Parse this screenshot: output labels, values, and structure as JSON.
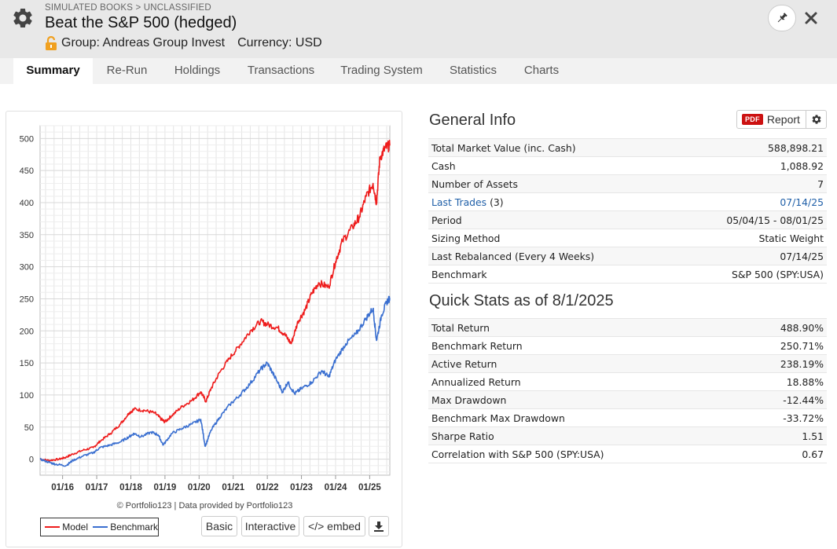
{
  "header": {
    "breadcrumb": "SIMULATED BOOKS > UNCLASSIFIED",
    "title": "Beat the S&P 500 (hedged)",
    "group": "Group: Andreas Group Invest",
    "currency": "Currency: USD"
  },
  "tabs": [
    "Summary",
    "Re-Run",
    "Holdings",
    "Transactions",
    "Trading System",
    "Statistics",
    "Charts"
  ],
  "general_info": {
    "title": "General Info",
    "report_badge": "PDF",
    "report_label": "Report",
    "rows": [
      {
        "label": "Total Market Value (inc. Cash)",
        "value": "588,898.21"
      },
      {
        "label": "Cash",
        "value": "1,088.92"
      },
      {
        "label": "Number of Assets",
        "value": "7"
      },
      {
        "label": "Last Trades",
        "label_suffix": "(3)",
        "value": "07/14/25"
      },
      {
        "label": "Period",
        "value": "05/04/15 - 08/01/25"
      },
      {
        "label": "Sizing Method",
        "value": "Static Weight"
      },
      {
        "label": "Last Rebalanced (Every 4 Weeks)",
        "value": "07/14/25"
      },
      {
        "label": "Benchmark",
        "value": "S&P 500 (SPY:USA)"
      }
    ]
  },
  "quick_stats": {
    "title": "Quick Stats as of 8/1/2025",
    "rows": [
      {
        "label": "Total Return",
        "value": "488.90%"
      },
      {
        "label": "Benchmark Return",
        "value": "250.71%"
      },
      {
        "label": "Active Return",
        "value": "238.19%"
      },
      {
        "label": "Annualized Return",
        "value": "18.88%"
      },
      {
        "label": "Max Drawdown",
        "value": "-12.44%"
      },
      {
        "label": "Benchmark Max Drawdown",
        "value": "-33.72%"
      },
      {
        "label": "Sharpe Ratio",
        "value": "1.51"
      },
      {
        "label": "Correlation with S&P 500 (SPY:USA)",
        "value": "0.67"
      }
    ]
  },
  "chart_panel": {
    "credit": "© Portfolio123 | Data provided by Portfolio123",
    "buttons": {
      "basic": "Basic",
      "interactive": "Interactive",
      "embed": "</> embed"
    }
  },
  "colors": {
    "model": "#ee1c1c",
    "benchmark": "#3a6fd0",
    "negative": "#dd1111",
    "link": "#1f5fa8"
  },
  "chart_data": {
    "type": "line",
    "ylim": [
      -25,
      520
    ],
    "yticks": [
      0,
      50,
      100,
      150,
      200,
      250,
      300,
      350,
      400,
      450,
      500
    ],
    "xlim": [
      2015.34,
      2025.59
    ],
    "xticks": [
      {
        "label": "01/16",
        "x": 2016.0
      },
      {
        "label": "01/17",
        "x": 2017.0
      },
      {
        "label": "01/18",
        "x": 2018.0
      },
      {
        "label": "01/19",
        "x": 2019.0
      },
      {
        "label": "01/20",
        "x": 2020.0
      },
      {
        "label": "01/21",
        "x": 2021.0
      },
      {
        "label": "01/22",
        "x": 2022.0
      },
      {
        "label": "01/23",
        "x": 2023.0
      },
      {
        "label": "01/24",
        "x": 2024.0
      },
      {
        "label": "01/25",
        "x": 2025.0
      }
    ],
    "series": [
      {
        "name": "Model",
        "points": [
          [
            2015.34,
            0
          ],
          [
            2015.6,
            -2
          ],
          [
            2015.9,
            0
          ],
          [
            2016.1,
            3
          ],
          [
            2016.3,
            8
          ],
          [
            2016.6,
            14
          ],
          [
            2016.9,
            18
          ],
          [
            2017.1,
            28
          ],
          [
            2017.4,
            40
          ],
          [
            2017.7,
            55
          ],
          [
            2017.95,
            72
          ],
          [
            2018.1,
            78
          ],
          [
            2018.4,
            76
          ],
          [
            2018.7,
            72
          ],
          [
            2018.9,
            62
          ],
          [
            2019.0,
            58
          ],
          [
            2019.2,
            68
          ],
          [
            2019.5,
            82
          ],
          [
            2019.8,
            92
          ],
          [
            2020.05,
            105
          ],
          [
            2020.2,
            90
          ],
          [
            2020.35,
            110
          ],
          [
            2020.6,
            135
          ],
          [
            2020.9,
            158
          ],
          [
            2021.2,
            178
          ],
          [
            2021.5,
            200
          ],
          [
            2021.8,
            215
          ],
          [
            2022.0,
            210
          ],
          [
            2022.3,
            205
          ],
          [
            2022.5,
            195
          ],
          [
            2022.7,
            180
          ],
          [
            2022.9,
            215
          ],
          [
            2023.1,
            232
          ],
          [
            2023.3,
            258
          ],
          [
            2023.5,
            275
          ],
          [
            2023.8,
            268
          ],
          [
            2024.0,
            308
          ],
          [
            2024.2,
            340
          ],
          [
            2024.5,
            362
          ],
          [
            2024.7,
            378
          ],
          [
            2024.9,
            410
          ],
          [
            2025.1,
            430
          ],
          [
            2025.2,
            400
          ],
          [
            2025.3,
            470
          ],
          [
            2025.45,
            485
          ],
          [
            2025.59,
            489
          ]
        ]
      },
      {
        "name": "Benchmark",
        "points": [
          [
            2015.34,
            0
          ],
          [
            2015.6,
            -5
          ],
          [
            2015.8,
            -8
          ],
          [
            2016.1,
            -10
          ],
          [
            2016.3,
            -2
          ],
          [
            2016.6,
            5
          ],
          [
            2016.9,
            10
          ],
          [
            2017.1,
            18
          ],
          [
            2017.4,
            22
          ],
          [
            2017.7,
            27
          ],
          [
            2017.95,
            35
          ],
          [
            2018.1,
            40
          ],
          [
            2018.3,
            35
          ],
          [
            2018.6,
            42
          ],
          [
            2018.8,
            38
          ],
          [
            2018.95,
            22
          ],
          [
            2019.2,
            40
          ],
          [
            2019.5,
            48
          ],
          [
            2019.8,
            55
          ],
          [
            2020.05,
            62
          ],
          [
            2020.18,
            20
          ],
          [
            2020.35,
            45
          ],
          [
            2020.6,
            65
          ],
          [
            2020.9,
            85
          ],
          [
            2021.2,
            100
          ],
          [
            2021.5,
            118
          ],
          [
            2021.8,
            140
          ],
          [
            2022.0,
            150
          ],
          [
            2022.2,
            130
          ],
          [
            2022.45,
            105
          ],
          [
            2022.6,
            120
          ],
          [
            2022.8,
            102
          ],
          [
            2023.0,
            110
          ],
          [
            2023.3,
            120
          ],
          [
            2023.6,
            138
          ],
          [
            2023.8,
            128
          ],
          [
            2024.0,
            155
          ],
          [
            2024.3,
            180
          ],
          [
            2024.6,
            195
          ],
          [
            2024.9,
            220
          ],
          [
            2025.1,
            235
          ],
          [
            2025.2,
            185
          ],
          [
            2025.35,
            225
          ],
          [
            2025.5,
            245
          ],
          [
            2025.59,
            251
          ]
        ]
      }
    ]
  }
}
